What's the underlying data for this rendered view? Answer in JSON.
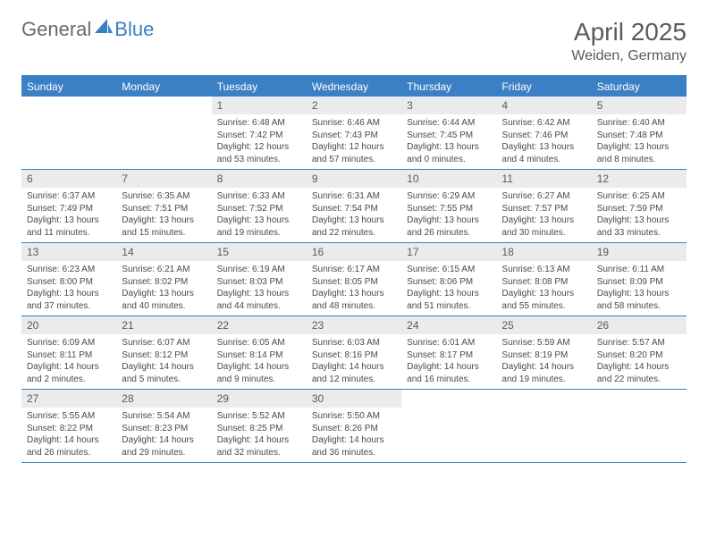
{
  "logo": {
    "brand_a": "General",
    "brand_b": "Blue"
  },
  "header": {
    "title": "April 2025",
    "location": "Weiden, Germany"
  },
  "colors": {
    "accent": "#3b7fc4",
    "daynum_bg": "#ebebeb",
    "text_gray": "#5a5a5a",
    "body_text": "#4a4a4a"
  },
  "calendar": {
    "weekdays": [
      "Sunday",
      "Monday",
      "Tuesday",
      "Wednesday",
      "Thursday",
      "Friday",
      "Saturday"
    ],
    "weeks": [
      [
        {
          "empty": true
        },
        {
          "empty": true
        },
        {
          "n": "1",
          "sr": "Sunrise: 6:48 AM",
          "ss": "Sunset: 7:42 PM",
          "dl": "Daylight: 12 hours and 53 minutes."
        },
        {
          "n": "2",
          "sr": "Sunrise: 6:46 AM",
          "ss": "Sunset: 7:43 PM",
          "dl": "Daylight: 12 hours and 57 minutes."
        },
        {
          "n": "3",
          "sr": "Sunrise: 6:44 AM",
          "ss": "Sunset: 7:45 PM",
          "dl": "Daylight: 13 hours and 0 minutes."
        },
        {
          "n": "4",
          "sr": "Sunrise: 6:42 AM",
          "ss": "Sunset: 7:46 PM",
          "dl": "Daylight: 13 hours and 4 minutes."
        },
        {
          "n": "5",
          "sr": "Sunrise: 6:40 AM",
          "ss": "Sunset: 7:48 PM",
          "dl": "Daylight: 13 hours and 8 minutes."
        }
      ],
      [
        {
          "n": "6",
          "sr": "Sunrise: 6:37 AM",
          "ss": "Sunset: 7:49 PM",
          "dl": "Daylight: 13 hours and 11 minutes."
        },
        {
          "n": "7",
          "sr": "Sunrise: 6:35 AM",
          "ss": "Sunset: 7:51 PM",
          "dl": "Daylight: 13 hours and 15 minutes."
        },
        {
          "n": "8",
          "sr": "Sunrise: 6:33 AM",
          "ss": "Sunset: 7:52 PM",
          "dl": "Daylight: 13 hours and 19 minutes."
        },
        {
          "n": "9",
          "sr": "Sunrise: 6:31 AM",
          "ss": "Sunset: 7:54 PM",
          "dl": "Daylight: 13 hours and 22 minutes."
        },
        {
          "n": "10",
          "sr": "Sunrise: 6:29 AM",
          "ss": "Sunset: 7:55 PM",
          "dl": "Daylight: 13 hours and 26 minutes."
        },
        {
          "n": "11",
          "sr": "Sunrise: 6:27 AM",
          "ss": "Sunset: 7:57 PM",
          "dl": "Daylight: 13 hours and 30 minutes."
        },
        {
          "n": "12",
          "sr": "Sunrise: 6:25 AM",
          "ss": "Sunset: 7:59 PM",
          "dl": "Daylight: 13 hours and 33 minutes."
        }
      ],
      [
        {
          "n": "13",
          "sr": "Sunrise: 6:23 AM",
          "ss": "Sunset: 8:00 PM",
          "dl": "Daylight: 13 hours and 37 minutes."
        },
        {
          "n": "14",
          "sr": "Sunrise: 6:21 AM",
          "ss": "Sunset: 8:02 PM",
          "dl": "Daylight: 13 hours and 40 minutes."
        },
        {
          "n": "15",
          "sr": "Sunrise: 6:19 AM",
          "ss": "Sunset: 8:03 PM",
          "dl": "Daylight: 13 hours and 44 minutes."
        },
        {
          "n": "16",
          "sr": "Sunrise: 6:17 AM",
          "ss": "Sunset: 8:05 PM",
          "dl": "Daylight: 13 hours and 48 minutes."
        },
        {
          "n": "17",
          "sr": "Sunrise: 6:15 AM",
          "ss": "Sunset: 8:06 PM",
          "dl": "Daylight: 13 hours and 51 minutes."
        },
        {
          "n": "18",
          "sr": "Sunrise: 6:13 AM",
          "ss": "Sunset: 8:08 PM",
          "dl": "Daylight: 13 hours and 55 minutes."
        },
        {
          "n": "19",
          "sr": "Sunrise: 6:11 AM",
          "ss": "Sunset: 8:09 PM",
          "dl": "Daylight: 13 hours and 58 minutes."
        }
      ],
      [
        {
          "n": "20",
          "sr": "Sunrise: 6:09 AM",
          "ss": "Sunset: 8:11 PM",
          "dl": "Daylight: 14 hours and 2 minutes."
        },
        {
          "n": "21",
          "sr": "Sunrise: 6:07 AM",
          "ss": "Sunset: 8:12 PM",
          "dl": "Daylight: 14 hours and 5 minutes."
        },
        {
          "n": "22",
          "sr": "Sunrise: 6:05 AM",
          "ss": "Sunset: 8:14 PM",
          "dl": "Daylight: 14 hours and 9 minutes."
        },
        {
          "n": "23",
          "sr": "Sunrise: 6:03 AM",
          "ss": "Sunset: 8:16 PM",
          "dl": "Daylight: 14 hours and 12 minutes."
        },
        {
          "n": "24",
          "sr": "Sunrise: 6:01 AM",
          "ss": "Sunset: 8:17 PM",
          "dl": "Daylight: 14 hours and 16 minutes."
        },
        {
          "n": "25",
          "sr": "Sunrise: 5:59 AM",
          "ss": "Sunset: 8:19 PM",
          "dl": "Daylight: 14 hours and 19 minutes."
        },
        {
          "n": "26",
          "sr": "Sunrise: 5:57 AM",
          "ss": "Sunset: 8:20 PM",
          "dl": "Daylight: 14 hours and 22 minutes."
        }
      ],
      [
        {
          "n": "27",
          "sr": "Sunrise: 5:55 AM",
          "ss": "Sunset: 8:22 PM",
          "dl": "Daylight: 14 hours and 26 minutes."
        },
        {
          "n": "28",
          "sr": "Sunrise: 5:54 AM",
          "ss": "Sunset: 8:23 PM",
          "dl": "Daylight: 14 hours and 29 minutes."
        },
        {
          "n": "29",
          "sr": "Sunrise: 5:52 AM",
          "ss": "Sunset: 8:25 PM",
          "dl": "Daylight: 14 hours and 32 minutes."
        },
        {
          "n": "30",
          "sr": "Sunrise: 5:50 AM",
          "ss": "Sunset: 8:26 PM",
          "dl": "Daylight: 14 hours and 36 minutes."
        },
        {
          "empty": true
        },
        {
          "empty": true
        },
        {
          "empty": true
        }
      ]
    ]
  }
}
